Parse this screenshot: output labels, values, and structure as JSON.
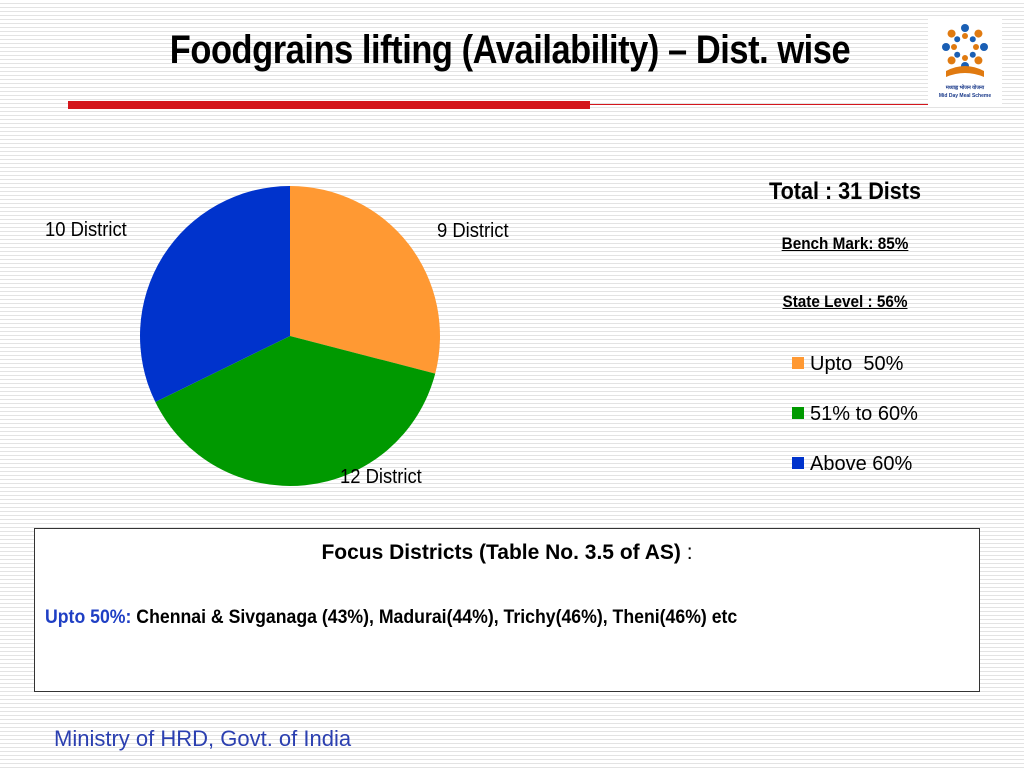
{
  "title": "Foodgrains lifting (Availability) – Dist. wise",
  "logo": {
    "text": "मध्याह्न भोजन योजना",
    "subtitle": "Mid Day Meal Scheme"
  },
  "summary": {
    "total": "Total : 31 Dists",
    "benchmark": "Bench Mark: 85%",
    "state_level": "State Level : 56%"
  },
  "colors": {
    "orange": "#ff9933",
    "green": "#009900",
    "blue": "#0033cc",
    "accent_red": "#d4161c",
    "footer_blue": "#2b3fb0"
  },
  "chart_data": {
    "type": "pie",
    "categories": [
      "Upto  50%",
      "51% to 60%",
      "Above 60%"
    ],
    "values": [
      9,
      12,
      10
    ],
    "data_labels": [
      "9 District",
      "12 District",
      "10 District"
    ],
    "colors": [
      "#ff9933",
      "#009900",
      "#0033cc"
    ],
    "legend_position": "right"
  },
  "focus": {
    "title": "Focus Districts (Table No. 3.5 of AS)",
    "colon": " :",
    "lead": "Upto 50%:",
    "text": " Chennai & Sivganaga (43%), Madurai(44%), Trichy(46%), Theni(46%) etc"
  },
  "footer": "Ministry of HRD, Govt. of India"
}
